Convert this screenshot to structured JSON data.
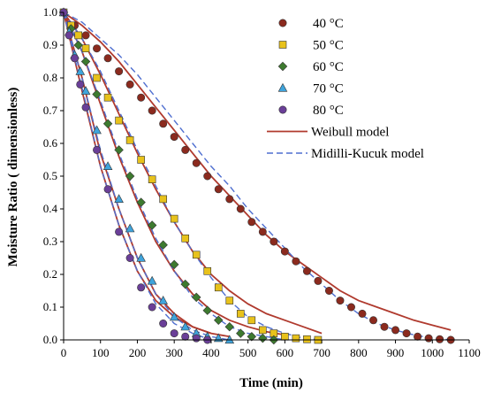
{
  "chart_data": {
    "type": "scatter",
    "xlabel": "Time (min)",
    "ylabel": "Moisture Ratio ( dimensionless)",
    "xlim": [
      0,
      1100
    ],
    "ylim": [
      0,
      1.0
    ],
    "xticks": [
      0,
      100,
      200,
      300,
      400,
      500,
      600,
      700,
      800,
      900,
      1000,
      1100
    ],
    "yticks": [
      0.0,
      0.1,
      0.2,
      0.3,
      0.4,
      0.5,
      0.6,
      0.7,
      0.8,
      0.9,
      1.0
    ],
    "grid": false,
    "legend_position": "top-right",
    "series": [
      {
        "name": "40 °C",
        "marker": "circle",
        "color": "#8B2A1E",
        "x": [
          0,
          30,
          60,
          90,
          120,
          150,
          180,
          210,
          240,
          270,
          300,
          330,
          360,
          390,
          420,
          450,
          480,
          510,
          540,
          570,
          600,
          630,
          660,
          690,
          720,
          750,
          780,
          810,
          840,
          870,
          900,
          930,
          960,
          990,
          1020,
          1050
        ],
        "y": [
          1.0,
          0.96,
          0.93,
          0.89,
          0.86,
          0.82,
          0.78,
          0.74,
          0.7,
          0.66,
          0.62,
          0.58,
          0.54,
          0.5,
          0.46,
          0.43,
          0.4,
          0.36,
          0.33,
          0.3,
          0.27,
          0.24,
          0.21,
          0.18,
          0.15,
          0.12,
          0.1,
          0.08,
          0.06,
          0.04,
          0.03,
          0.02,
          0.01,
          0.005,
          0.002,
          0.0
        ]
      },
      {
        "name": "50 °C",
        "marker": "square",
        "color": "#E8C21B",
        "x": [
          0,
          20,
          40,
          60,
          90,
          120,
          150,
          180,
          210,
          240,
          270,
          300,
          330,
          360,
          390,
          420,
          450,
          480,
          510,
          540,
          570,
          600,
          630,
          660,
          690
        ],
        "y": [
          1.0,
          0.96,
          0.93,
          0.89,
          0.8,
          0.74,
          0.67,
          0.61,
          0.55,
          0.49,
          0.43,
          0.37,
          0.31,
          0.26,
          0.21,
          0.16,
          0.12,
          0.08,
          0.06,
          0.03,
          0.02,
          0.01,
          0.005,
          0.002,
          0.0
        ]
      },
      {
        "name": "60 °C",
        "marker": "diamond",
        "color": "#3D7A2F",
        "x": [
          0,
          20,
          40,
          60,
          90,
          120,
          150,
          180,
          210,
          240,
          270,
          300,
          330,
          360,
          390,
          420,
          450,
          480,
          510,
          540,
          570
        ],
        "y": [
          1.0,
          0.95,
          0.9,
          0.85,
          0.75,
          0.66,
          0.58,
          0.5,
          0.42,
          0.35,
          0.29,
          0.23,
          0.17,
          0.13,
          0.09,
          0.06,
          0.04,
          0.02,
          0.01,
          0.005,
          0.0
        ]
      },
      {
        "name": "70 °C",
        "marker": "triangle",
        "color": "#3FA4DC",
        "x": [
          0,
          15,
          30,
          45,
          60,
          90,
          120,
          150,
          180,
          210,
          240,
          270,
          300,
          330,
          360,
          390,
          420,
          450
        ],
        "y": [
          1.0,
          0.94,
          0.87,
          0.82,
          0.76,
          0.64,
          0.53,
          0.43,
          0.34,
          0.25,
          0.18,
          0.12,
          0.07,
          0.04,
          0.02,
          0.01,
          0.005,
          0.0
        ]
      },
      {
        "name": "80 °C",
        "marker": "circle",
        "color": "#6A3F98",
        "x": [
          0,
          15,
          30,
          45,
          60,
          90,
          120,
          150,
          180,
          210,
          240,
          270,
          300,
          330,
          360,
          390
        ],
        "y": [
          1.0,
          0.93,
          0.86,
          0.78,
          0.71,
          0.58,
          0.46,
          0.33,
          0.25,
          0.16,
          0.1,
          0.05,
          0.02,
          0.01,
          0.005,
          0.0
        ]
      },
      {
        "name": "Weibull model",
        "line_style": "solid",
        "color": "#B03A2E",
        "curves": [
          {
            "x": [
              0,
              50,
              100,
              150,
              200,
              250,
              300,
              350,
              400,
              450,
              500,
              550,
              600,
              650,
              700,
              750,
              800,
              850,
              900,
              950,
              1000,
              1050
            ],
            "y": [
              1.0,
              0.96,
              0.91,
              0.85,
              0.78,
              0.71,
              0.64,
              0.57,
              0.5,
              0.44,
              0.38,
              0.32,
              0.27,
              0.23,
              0.19,
              0.15,
              0.12,
              0.1,
              0.08,
              0.06,
              0.045,
              0.03
            ]
          },
          {
            "x": [
              0,
              50,
              100,
              150,
              200,
              250,
              300,
              350,
              400,
              450,
              500,
              550,
              600,
              650,
              700
            ],
            "y": [
              1.0,
              0.92,
              0.81,
              0.69,
              0.57,
              0.46,
              0.36,
              0.27,
              0.2,
              0.15,
              0.11,
              0.08,
              0.06,
              0.04,
              0.02
            ]
          },
          {
            "x": [
              0,
              50,
              100,
              150,
              200,
              250,
              300,
              350,
              400,
              450,
              500,
              550,
              600
            ],
            "y": [
              1.0,
              0.88,
              0.72,
              0.56,
              0.42,
              0.3,
              0.21,
              0.14,
              0.09,
              0.06,
              0.04,
              0.025,
              0.015
            ]
          },
          {
            "x": [
              0,
              50,
              100,
              150,
              200,
              250,
              300,
              350,
              400,
              450
            ],
            "y": [
              1.0,
              0.8,
              0.57,
              0.4,
              0.25,
              0.14,
              0.08,
              0.04,
              0.02,
              0.01
            ]
          },
          {
            "x": [
              0,
              50,
              100,
              150,
              200,
              250,
              300,
              350,
              400
            ],
            "y": [
              1.0,
              0.76,
              0.53,
              0.35,
              0.21,
              0.12,
              0.07,
              0.04,
              0.02
            ]
          }
        ]
      },
      {
        "name": "Midilli-Kucuk model",
        "line_style": "dashed",
        "color": "#4F6FD0",
        "curves": [
          {
            "x": [
              0,
              50,
              100,
              150,
              200,
              250,
              300,
              350,
              400,
              450,
              500,
              550,
              600,
              650,
              700,
              750,
              800,
              850,
              900,
              950,
              1000,
              1050
            ],
            "y": [
              1.0,
              0.97,
              0.92,
              0.87,
              0.81,
              0.74,
              0.67,
              0.6,
              0.53,
              0.47,
              0.4,
              0.34,
              0.28,
              0.22,
              0.17,
              0.12,
              0.08,
              0.05,
              0.03,
              0.015,
              0.005,
              0.0
            ]
          },
          {
            "x": [
              0,
              50,
              100,
              150,
              200,
              250,
              300,
              350,
              400,
              450,
              500,
              550,
              600,
              650,
              700
            ],
            "y": [
              1.0,
              0.92,
              0.82,
              0.7,
              0.58,
              0.47,
              0.36,
              0.27,
              0.19,
              0.12,
              0.07,
              0.04,
              0.02,
              0.005,
              0.0
            ]
          },
          {
            "x": [
              0,
              50,
              100,
              150,
              200,
              250,
              300,
              350,
              400,
              450,
              500,
              550,
              600
            ],
            "y": [
              1.0,
              0.88,
              0.73,
              0.57,
              0.43,
              0.31,
              0.21,
              0.13,
              0.08,
              0.04,
              0.02,
              0.01,
              0.0
            ]
          },
          {
            "x": [
              0,
              50,
              100,
              150,
              200,
              250,
              300,
              350,
              400,
              450
            ],
            "y": [
              1.0,
              0.8,
              0.58,
              0.4,
              0.25,
              0.14,
              0.07,
              0.03,
              0.01,
              0.0
            ]
          },
          {
            "x": [
              0,
              50,
              100,
              150,
              200,
              250,
              300,
              350,
              400
            ],
            "y": [
              1.0,
              0.77,
              0.53,
              0.35,
              0.21,
              0.11,
              0.05,
              0.02,
              0.0
            ]
          }
        ]
      }
    ]
  }
}
